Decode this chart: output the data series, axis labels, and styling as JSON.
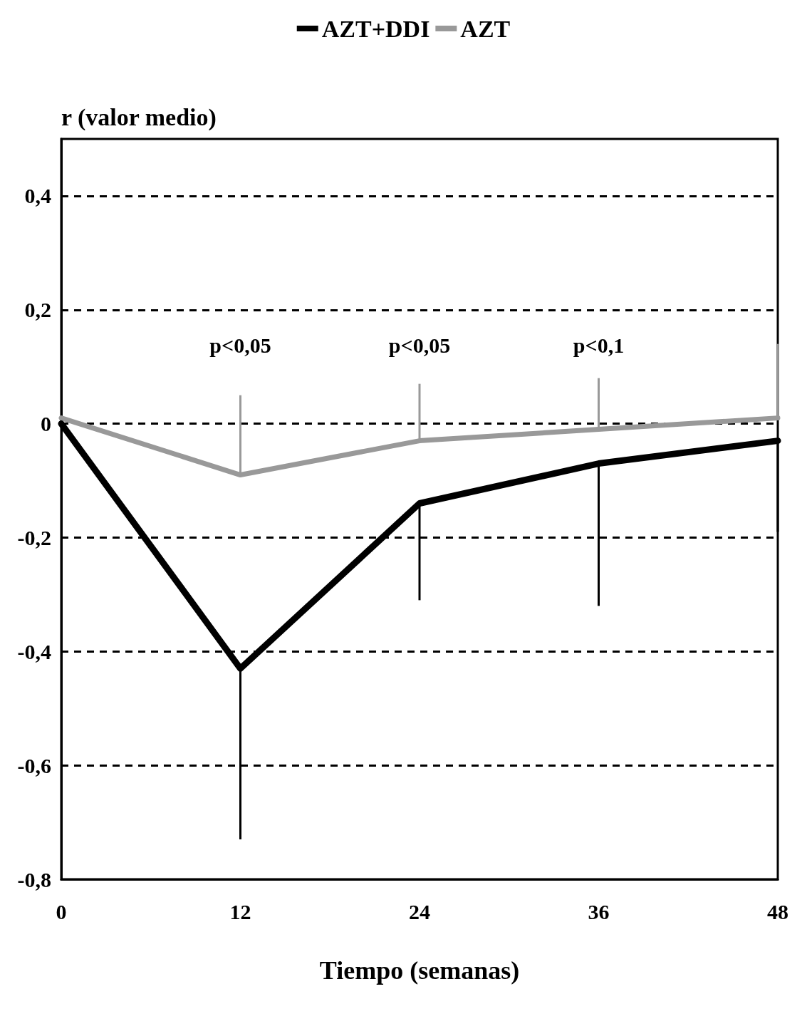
{
  "chart_data": {
    "type": "line",
    "xlabel": "Tiempo (semanas)",
    "ylabel": "r (valor medio)",
    "x": [
      0,
      12,
      24,
      36,
      48
    ],
    "series": [
      {
        "name": "AZT+DDI",
        "color": "#000000",
        "values": [
          0,
          -0.43,
          -0.14,
          -0.07,
          -0.03
        ],
        "errors": [
          null,
          [
            -0.73,
            -0.43
          ],
          [
            -0.31,
            -0.14
          ],
          [
            -0.32,
            -0.07
          ],
          [
            -0.19,
            -0.03
          ]
        ]
      },
      {
        "name": "AZT",
        "color": "#999999",
        "values": [
          0.01,
          -0.09,
          -0.03,
          -0.01,
          0.01
        ],
        "errors": [
          null,
          [
            -0.09,
            0.05
          ],
          [
            -0.03,
            0.07
          ],
          [
            -0.01,
            0.08
          ],
          [
            0.01,
            0.14
          ]
        ]
      }
    ],
    "xlim": [
      0,
      48
    ],
    "xticks": [
      0,
      12,
      24,
      36,
      48
    ],
    "ylim": [
      -0.8,
      0.5
    ],
    "yticks": [
      {
        "value": -0.8,
        "label": "-0,8"
      },
      {
        "value": -0.6,
        "label": "-0,6"
      },
      {
        "value": -0.4,
        "label": "-0,4"
      },
      {
        "value": -0.2,
        "label": "-0,2"
      },
      {
        "value": 0,
        "label": "0"
      },
      {
        "value": 0.2,
        "label": "0,2"
      },
      {
        "value": 0.4,
        "label": "0,4"
      }
    ],
    "annotations": [
      "p<0,05",
      "p<0,05",
      "p<0,1"
    ],
    "grid": "y",
    "legend": "top",
    "marker": "none",
    "line_style": "solid"
  }
}
